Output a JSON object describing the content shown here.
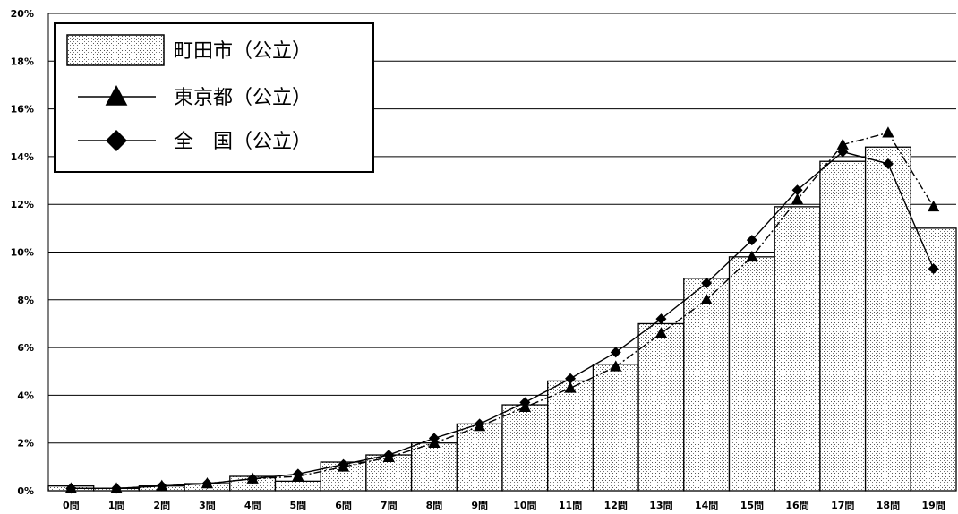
{
  "chart_data": {
    "type": "bar",
    "categories": [
      "0問",
      "1問",
      "2問",
      "3問",
      "4問",
      "5問",
      "6問",
      "7問",
      "8問",
      "9問",
      "10問",
      "11問",
      "12問",
      "13問",
      "14問",
      "15問",
      "16問",
      "17問",
      "18問",
      "19問"
    ],
    "ylim": [
      0,
      20
    ],
    "y_ticks": [
      "0%",
      "2%",
      "4%",
      "6%",
      "8%",
      "10%",
      "12%",
      "14%",
      "16%",
      "18%",
      "20%"
    ],
    "grid": true,
    "legend_position": "top-left",
    "series": [
      {
        "name": "町田市（公立）",
        "kind": "bar",
        "pattern": "dotted",
        "values": [
          0.2,
          0.1,
          0.2,
          0.3,
          0.6,
          0.4,
          1.2,
          1.5,
          2.0,
          2.8,
          3.6,
          4.6,
          5.3,
          7.0,
          8.9,
          9.8,
          11.9,
          13.8,
          14.4,
          11.0
        ]
      },
      {
        "name": "東京都（公立）",
        "kind": "line",
        "marker": "triangle",
        "line_style": "dash-dot",
        "values": [
          0.1,
          0.1,
          0.2,
          0.3,
          0.5,
          0.6,
          1.0,
          1.4,
          2.0,
          2.7,
          3.5,
          4.3,
          5.2,
          6.6,
          8.0,
          9.8,
          12.2,
          14.5,
          15.0,
          11.9
        ]
      },
      {
        "name": "全　国（公立）",
        "kind": "line",
        "marker": "diamond",
        "line_style": "solid",
        "values": [
          0.1,
          0.1,
          0.2,
          0.3,
          0.5,
          0.7,
          1.1,
          1.5,
          2.2,
          2.8,
          3.7,
          4.7,
          5.8,
          7.2,
          8.7,
          10.5,
          12.6,
          14.2,
          13.7,
          9.3
        ]
      }
    ]
  }
}
